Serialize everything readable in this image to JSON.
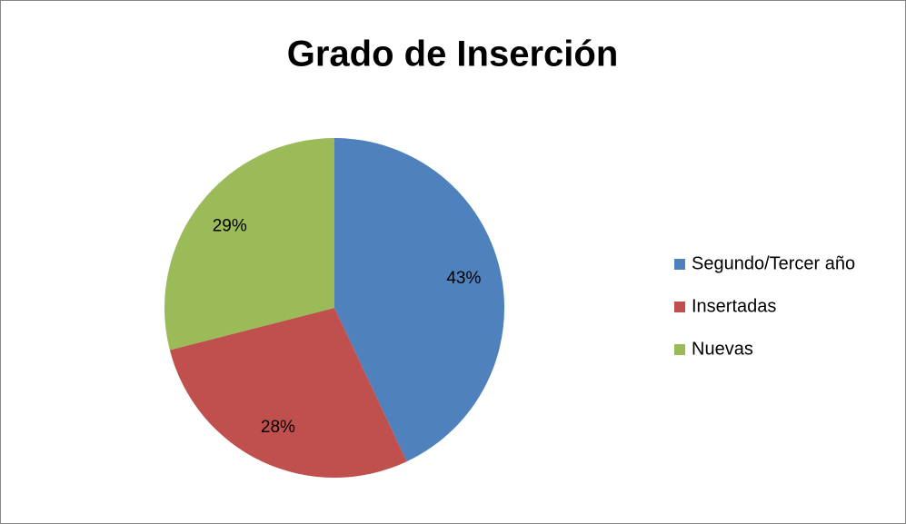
{
  "chart_data": {
    "type": "pie",
    "title": "Grado de Inserción",
    "categories": [
      "Segundo/Tercer año",
      "Insertadas",
      "Nuevas"
    ],
    "values": [
      43,
      28,
      29
    ],
    "value_labels": [
      "43%",
      "28%",
      "29%"
    ],
    "colors": [
      "#4f81bd",
      "#c0504d",
      "#9bbb59"
    ],
    "legend": "right"
  }
}
